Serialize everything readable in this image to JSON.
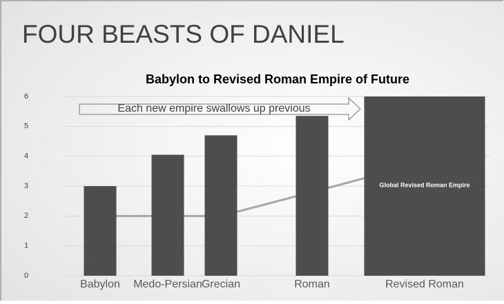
{
  "slide_title": "FOUR BEASTS OF DANIEL",
  "chart_data": {
    "type": "bar",
    "title": "Babylon to Revised Roman Empire of Future",
    "categories": [
      "Babylon",
      "Medo-Persian",
      "Grecian",
      "Roman",
      "Revised Roman"
    ],
    "values": [
      3.0,
      4.05,
      4.7,
      5.35,
      6
    ],
    "color": "#4d4d4d",
    "series": [
      {
        "type": "line",
        "color": "#a6a6a6",
        "values": [
          2,
          2,
          2,
          2.8,
          3.8
        ]
      }
    ],
    "ylim": [
      0,
      6
    ],
    "yticks": [
      0,
      1,
      2,
      3,
      4,
      5,
      6
    ],
    "grid": true,
    "annotations": [
      "Each new empire swallows up previous",
      "Global Revised Roman Empire"
    ]
  }
}
